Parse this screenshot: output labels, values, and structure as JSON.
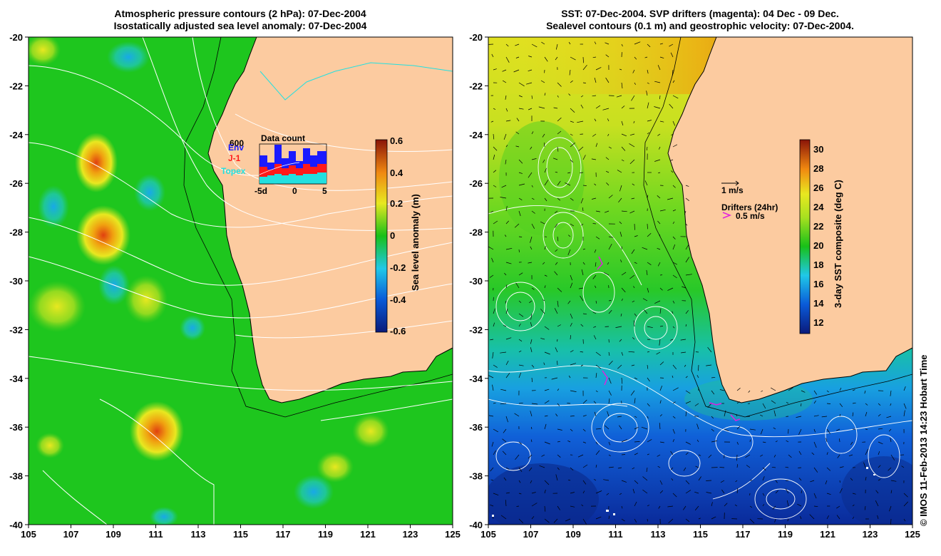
{
  "left_panel": {
    "title_line1": "Atmospheric pressure contours (2 hPa): 07-Dec-2004",
    "title_line2": "Isostatically adjusted sea level anomaly: 07-Dec-2004",
    "x_ticks": [
      "105",
      "107",
      "109",
      "111",
      "113",
      "115",
      "117",
      "119",
      "121",
      "123",
      "125"
    ],
    "y_ticks": [
      "-20",
      "-22",
      "-24",
      "-26",
      "-28",
      "-30",
      "-32",
      "-34",
      "-36",
      "-38",
      "-40"
    ],
    "colorbar": {
      "label": "Sea level anomaly (m)",
      "ticks": [
        "0.6",
        "0.4",
        "0.2",
        "0",
        "-0.2",
        "-0.4",
        "-0.6"
      ]
    },
    "inset": {
      "title": "Data count",
      "ymax_label": "600",
      "x_ticks": [
        "-5d",
        "0",
        "5"
      ],
      "legend": [
        {
          "label": "Env",
          "color": "#1a1aff"
        },
        {
          "label": "J-1",
          "color": "#ff1a1a"
        },
        {
          "label": "Topex",
          "color": "#22e0e0"
        }
      ]
    }
  },
  "right_panel": {
    "title_line1": "SST: 07-Dec-2004. SVP drifters (magenta): 04 Dec - 09 Dec.",
    "title_line2": "Sealevel contours (0.1 m) and geostrophic velocity: 07-Dec-2004.",
    "x_ticks": [
      "105",
      "107",
      "109",
      "111",
      "113",
      "115",
      "117",
      "119",
      "121",
      "123",
      "125"
    ],
    "y_ticks": [
      "-20",
      "-22",
      "-24",
      "-26",
      "-28",
      "-30",
      "-32",
      "-34",
      "-36",
      "-38",
      "-40"
    ],
    "colorbar": {
      "label": "3-day SST composite (deg C)",
      "ticks": [
        "30",
        "28",
        "26",
        "24",
        "22",
        "20",
        "18",
        "16",
        "14",
        "12"
      ]
    },
    "scale_label": "1 m/s",
    "drifter_legend_title": "Drifters (24hr)",
    "drifter_legend_value": "0.5 m/s"
  },
  "credit": "© IMOS 11-Feb-2013 14:23 Hobart Time",
  "colors": {
    "land": "#fccba0",
    "ocean_base": "#1ec61e",
    "drifter": "#e020e0"
  }
}
